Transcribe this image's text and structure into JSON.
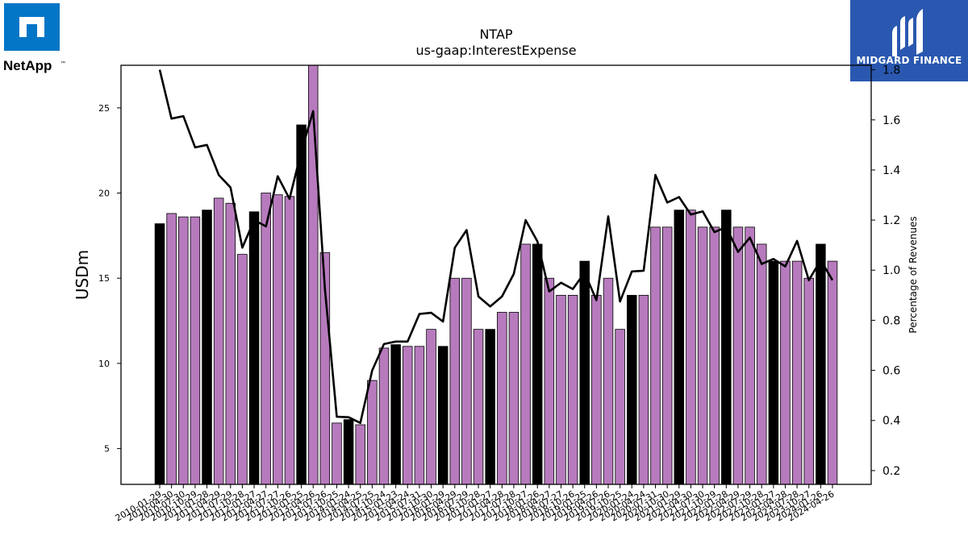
{
  "logos": {
    "left_brand": "NetApp",
    "left_trademark": "™",
    "right_brand": "MIDGARD FINANCE"
  },
  "colors": {
    "brand_blue": "#0476c7",
    "midgard_blue": "#2a58b0",
    "bar_purple": "#b77bbd",
    "bar_black": "#000000",
    "line": "#000000"
  },
  "chart_data": {
    "type": "bar",
    "title": "NTAP",
    "subtitle": "us-gaap:InterestExpense",
    "ylabel": "USDm",
    "y2label": "Percentage of Revenues",
    "ylim": [
      2.9,
      27.5
    ],
    "y2lim": [
      0.145,
      1.818
    ],
    "yticks": [
      5,
      10,
      15,
      20,
      25
    ],
    "y2ticks": [
      0.2,
      0.4,
      0.6,
      0.8,
      1.0,
      1.2,
      1.4,
      1.6,
      1.8
    ],
    "categories": [
      "2010-01-29",
      "2010-04-30",
      "2010-07-30",
      "2010-10-29",
      "2011-01-28",
      "2011-04-29",
      "2011-07-29",
      "2011-10-28",
      "2012-01-27",
      "2012-04-27",
      "2012-07-27",
      "2012-10-26",
      "2013-01-25",
      "2013-04-26",
      "2013-07-26",
      "2013-10-25",
      "2014-01-24",
      "2014-04-25",
      "2014-07-25",
      "2014-10-24",
      "2015-01-23",
      "2015-04-24",
      "2015-07-31",
      "2015-10-30",
      "2016-01-29",
      "2016-04-29",
      "2016-07-29",
      "2016-10-28",
      "2017-01-27",
      "2017-04-28",
      "2017-07-28",
      "2017-10-27",
      "2018-01-26",
      "2018-04-27",
      "2018-07-27",
      "2018-10-26",
      "2019-01-25",
      "2019-04-26",
      "2019-07-26",
      "2019-10-25",
      "2020-01-24",
      "2020-04-24",
      "2020-07-31",
      "2020-10-30",
      "2021-01-29",
      "2021-04-30",
      "2021-07-30",
      "2021-10-29",
      "2022-01-28",
      "2022-04-29",
      "2022-07-29",
      "2022-10-28",
      "2023-01-27",
      "2023-04-28",
      "2023-07-28",
      "2023-10-27",
      "2024-01-26",
      "2024-04-26"
    ],
    "xticklabels": [
      "2010-01-29",
      "2010-04-30",
      "2010-07-30",
      "2010-10-29",
      "2011-01-28",
      "2011-04-29",
      "2011-07-29",
      "2011-10-28",
      "2012-01-27",
      "2012-04-27",
      "2012-07-27",
      "2012-10-26",
      "2013-01-25",
      "2013-04-26",
      "2013-07-26",
      "2013-10-25",
      "2014-01-24",
      "2014-04-25",
      "2014-07-25",
      "2014-10-24",
      "2015-01-23",
      "2015-04-24",
      "2015-07-31",
      "2015-10-30",
      "2016-01-29",
      "2016-04-29",
      "2016-07-29",
      "2016-10-28",
      "2017-01-27",
      "2017-04-28",
      "2017-07-28",
      "2017-10-27",
      "2018-01-26",
      "2018-04-27",
      "2018-07-27",
      "2018-10-26",
      "2019-01-25",
      "2019-04-26",
      "2019-07-26",
      "2019-10-25",
      "2020-01-24",
      "2020-04-24",
      "2020-07-31",
      "2020-10-30",
      "2021-01-29",
      "2021-04-30",
      "2021-07-30",
      "2021-10-29",
      "2022-01-28",
      "2022-04-29",
      "2022-07-29",
      "2022-10-28",
      "2023-01-27",
      "2023-04-28",
      "2023-07-28",
      "2023-10-27",
      "2024-01-26",
      "2024-04-26"
    ],
    "series": [
      {
        "type": "bar",
        "axis": "left",
        "values": [
          18.2,
          18.8,
          18.6,
          18.6,
          19.0,
          19.7,
          19.4,
          16.4,
          18.9,
          20.0,
          19.9,
          19.8,
          24.0,
          27.6,
          16.5,
          6.5,
          6.7,
          6.4,
          9.0,
          10.9,
          11.1,
          11.0,
          11.0,
          12.0,
          11.0,
          15.0,
          15.0,
          12.0,
          12.0,
          13.0,
          13.0,
          17.0,
          17.0,
          15.0,
          14.0,
          14.0,
          16.0,
          14.0,
          15.0,
          12.0,
          14.0,
          14.0,
          18.0,
          18.0,
          19.0,
          19.0,
          18.0,
          18.0,
          19.0,
          18.0,
          18.0,
          17.0,
          16.0,
          16.0,
          16.0,
          15.0,
          17.0,
          16.0
        ],
        "highlight": [
          true,
          false,
          false,
          false,
          true,
          false,
          false,
          false,
          true,
          false,
          false,
          false,
          true,
          false,
          false,
          false,
          true,
          false,
          false,
          false,
          true,
          false,
          false,
          false,
          true,
          false,
          false,
          false,
          true,
          false,
          false,
          false,
          true,
          false,
          false,
          false,
          true,
          false,
          false,
          false,
          true,
          false,
          false,
          false,
          true,
          false,
          false,
          false,
          true,
          false,
          false,
          false,
          true,
          false,
          false,
          false,
          true,
          false
        ]
      },
      {
        "type": "line",
        "axis": "right",
        "values": [
          1.8,
          1.605,
          1.615,
          1.49,
          1.5,
          1.38,
          1.33,
          1.09,
          1.2,
          1.175,
          1.375,
          1.285,
          1.475,
          1.635,
          0.925,
          0.415,
          0.413,
          0.39,
          0.6,
          0.705,
          0.715,
          0.715,
          0.825,
          0.83,
          0.795,
          1.09,
          1.16,
          0.895,
          0.855,
          0.895,
          0.985,
          1.2,
          1.115,
          0.915,
          0.95,
          0.925,
          0.99,
          0.88,
          1.215,
          0.875,
          0.995,
          0.998,
          1.38,
          1.27,
          1.292,
          1.222,
          1.235,
          1.152,
          1.172,
          1.073,
          1.13,
          1.025,
          1.045,
          1.015,
          1.117,
          0.96,
          1.04,
          0.96
        ]
      }
    ],
    "grid": false
  }
}
